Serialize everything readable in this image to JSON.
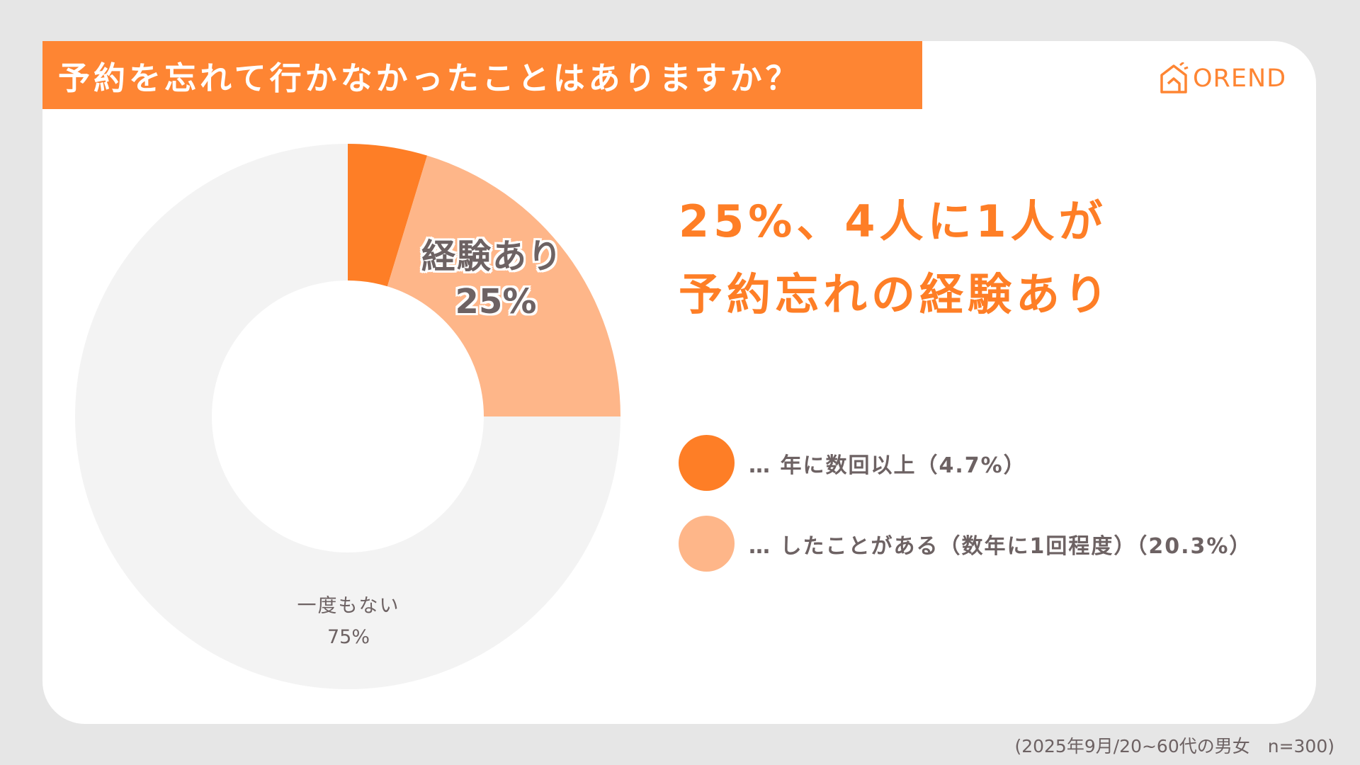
{
  "title": "予約を忘れて行かなかったことはありますか？",
  "logo": {
    "text": "OREND",
    "icon": "house-icon",
    "color": "#fe8533"
  },
  "headline": {
    "line1": "25%、4人に1人が",
    "line2": "予約忘れの経験あり"
  },
  "chart_data": {
    "type": "pie",
    "donut": true,
    "title": "予約を忘れて行かなかったことはありますか？",
    "slices": [
      {
        "name": "年に数回以上",
        "value": 4.7,
        "color": "#fe7e26"
      },
      {
        "name": "したことがある（数年に1回程度）",
        "value": 20.3,
        "color": "#feb689"
      },
      {
        "name": "一度もない",
        "value": 75,
        "color": "#f3f3f3"
      }
    ],
    "annotations": [
      {
        "line1": "経験あり",
        "line2": "25%"
      },
      {
        "line1": "一度もない",
        "line2": "75%"
      }
    ],
    "legend_position": "right"
  },
  "legend": [
    {
      "label": "… 年に数回以上（4.7%）",
      "color": "#fe7e26"
    },
    {
      "label": "… したことがある（数年に1回程度）（20.3%）",
      "color": "#feb689"
    }
  ],
  "footnote": "(2025年9月/20~60代の男女　n=300)"
}
